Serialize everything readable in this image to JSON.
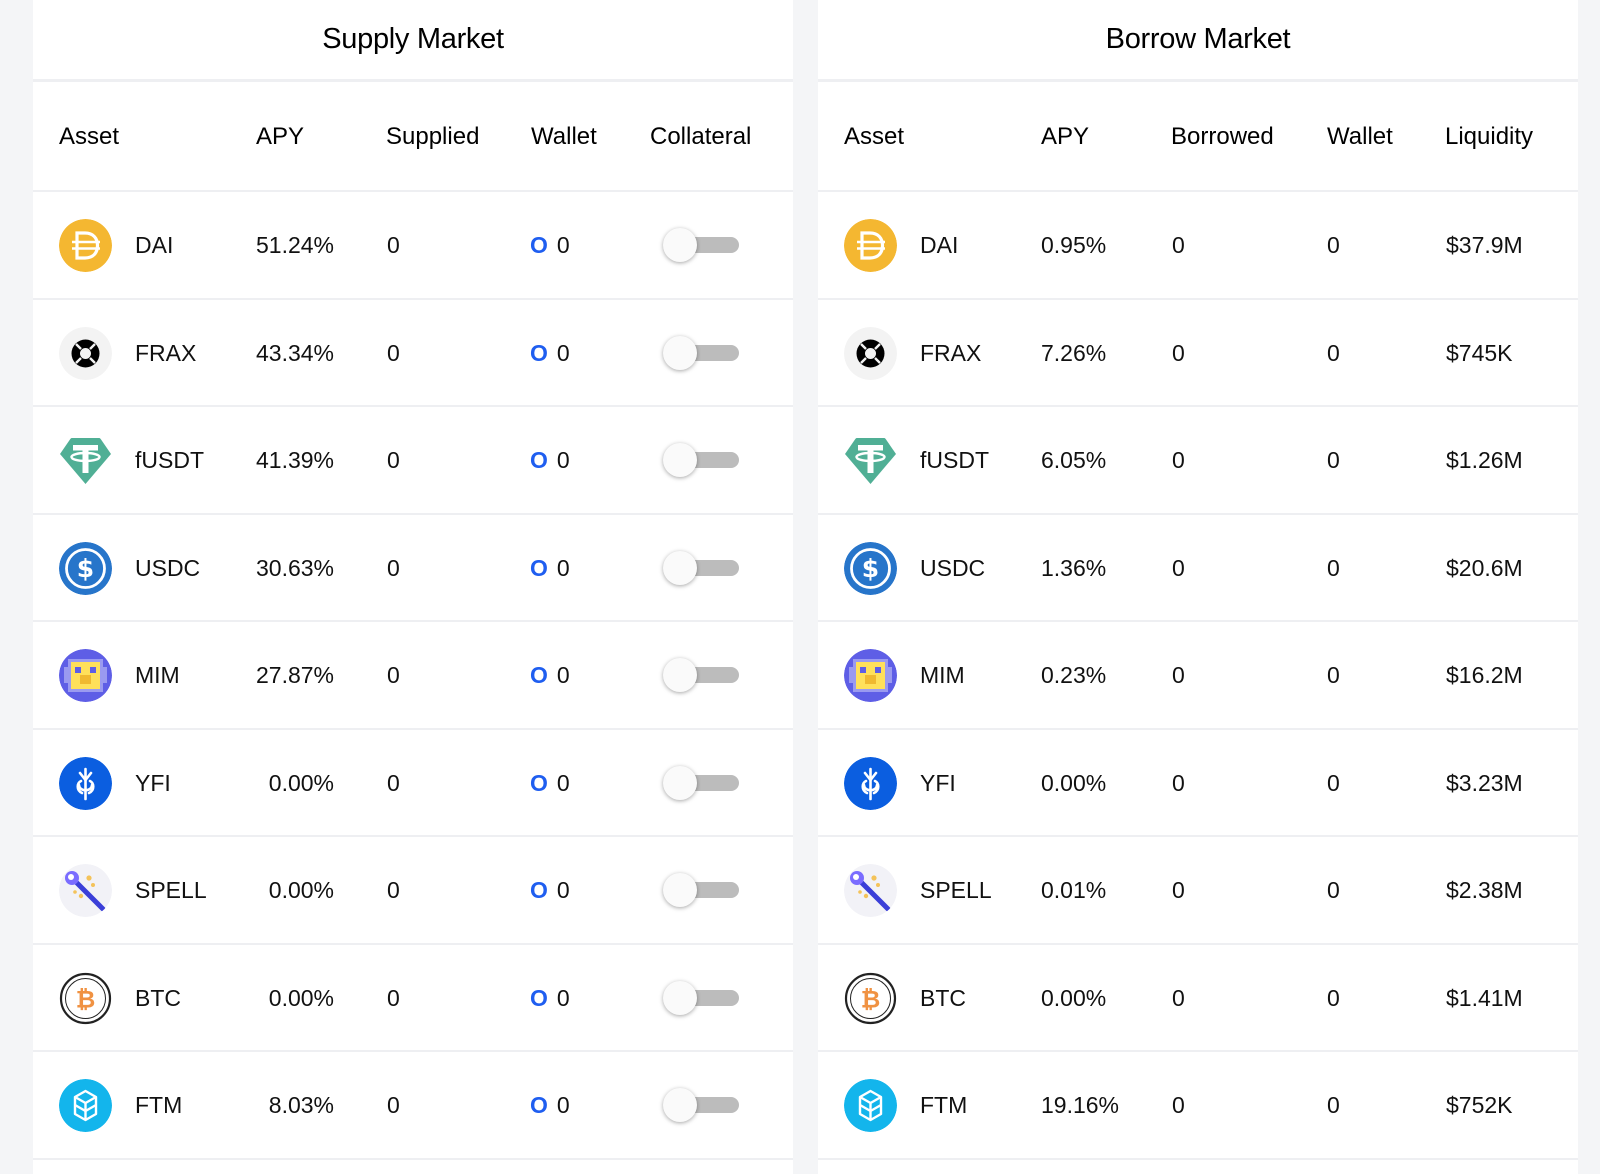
{
  "supply_market": {
    "title": "Supply Market",
    "columns": [
      "Asset",
      "APY",
      "Supplied",
      "Wallet",
      "Collateral"
    ],
    "rows": [
      {
        "asset": "DAI",
        "icon": "dai-icon",
        "apy": "51.24%",
        "supplied": "0",
        "wallet_icon": "O",
        "wallet": "0",
        "collateral": false
      },
      {
        "asset": "FRAX",
        "icon": "frax-icon",
        "apy": "43.34%",
        "supplied": "0",
        "wallet_icon": "O",
        "wallet": "0",
        "collateral": false
      },
      {
        "asset": "fUSDT",
        "icon": "tether-icon",
        "apy": "41.39%",
        "supplied": "0",
        "wallet_icon": "O",
        "wallet": "0",
        "collateral": false
      },
      {
        "asset": "USDC",
        "icon": "usdc-icon",
        "apy": "30.63%",
        "supplied": "0",
        "wallet_icon": "O",
        "wallet": "0",
        "collateral": false
      },
      {
        "asset": "MIM",
        "icon": "mim-icon",
        "apy": "27.87%",
        "supplied": "0",
        "wallet_icon": "O",
        "wallet": "0",
        "collateral": false
      },
      {
        "asset": "YFI",
        "icon": "yfi-icon",
        "apy": "0.00%",
        "supplied": "0",
        "wallet_icon": "O",
        "wallet": "0",
        "collateral": false
      },
      {
        "asset": "SPELL",
        "icon": "spell-icon",
        "apy": "0.00%",
        "supplied": "0",
        "wallet_icon": "O",
        "wallet": "0",
        "collateral": false
      },
      {
        "asset": "BTC",
        "icon": "btc-icon",
        "apy": "0.00%",
        "supplied": "0",
        "wallet_icon": "O",
        "wallet": "0",
        "collateral": false
      },
      {
        "asset": "FTM",
        "icon": "ftm-icon",
        "apy": "8.03%",
        "supplied": "0",
        "wallet_icon": "O",
        "wallet": "0",
        "collateral": false
      }
    ]
  },
  "borrow_market": {
    "title": "Borrow Market",
    "columns": [
      "Asset",
      "APY",
      "Borrowed",
      "Wallet",
      "Liquidity"
    ],
    "rows": [
      {
        "asset": "DAI",
        "icon": "dai-icon",
        "apy": "0.95%",
        "borrowed": "0",
        "wallet": "0",
        "liquidity": "$37.9M"
      },
      {
        "asset": "FRAX",
        "icon": "frax-icon",
        "apy": "7.26%",
        "borrowed": "0",
        "wallet": "0",
        "liquidity": "$745K"
      },
      {
        "asset": "fUSDT",
        "icon": "tether-icon",
        "apy": "6.05%",
        "borrowed": "0",
        "wallet": "0",
        "liquidity": "$1.26M"
      },
      {
        "asset": "USDC",
        "icon": "usdc-icon",
        "apy": "1.36%",
        "borrowed": "0",
        "wallet": "0",
        "liquidity": "$20.6M"
      },
      {
        "asset": "MIM",
        "icon": "mim-icon",
        "apy": "0.23%",
        "borrowed": "0",
        "wallet": "0",
        "liquidity": "$16.2M"
      },
      {
        "asset": "YFI",
        "icon": "yfi-icon",
        "apy": "0.00%",
        "borrowed": "0",
        "wallet": "0",
        "liquidity": "$3.23M"
      },
      {
        "asset": "SPELL",
        "icon": "spell-icon",
        "apy": "0.01%",
        "borrowed": "0",
        "wallet": "0",
        "liquidity": "$2.38M"
      },
      {
        "asset": "BTC",
        "icon": "btc-icon",
        "apy": "0.00%",
        "borrowed": "0",
        "wallet": "0",
        "liquidity": "$1.41M"
      },
      {
        "asset": "FTM",
        "icon": "ftm-icon",
        "apy": "19.16%",
        "borrowed": "0",
        "wallet": "0",
        "liquidity": "$752K"
      }
    ]
  },
  "colors": {
    "wallet_accent": "#1f5ef0",
    "toggle_track": "#bcbcbc",
    "divider": "#eeeff2",
    "page_background": "#f4f5f7"
  }
}
